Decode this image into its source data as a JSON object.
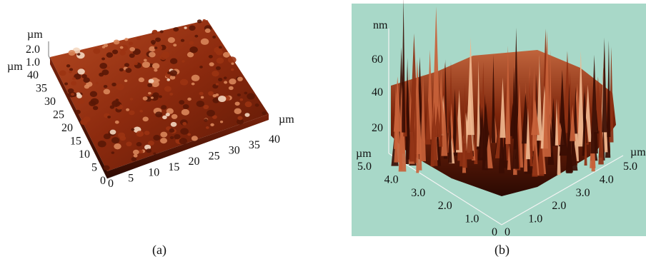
{
  "panels": [
    {
      "caption": "(a)",
      "z_unit": "µm",
      "z_ticks": [
        "2.0",
        "1.0"
      ],
      "y_unit": "µm",
      "y_ticks": [
        "40",
        "35",
        "30",
        "25",
        "20",
        "15",
        "10",
        "5",
        "0"
      ],
      "x_unit": "µm",
      "x_ticks": [
        "0",
        "5",
        "10",
        "15",
        "20",
        "25",
        "30",
        "35",
        "40"
      ],
      "surface_colors": [
        "#5a1705",
        "#9b3312",
        "#d9865a",
        "#f4d7c0"
      ]
    },
    {
      "caption": "(b)",
      "background": "#a8d8c8",
      "z_unit": "nm",
      "z_ticks": [
        "60",
        "40",
        "20"
      ],
      "left_unit": "µm",
      "left_ticks": [
        "5.0",
        "4.0",
        "3.0",
        "2.0",
        "1.0",
        "0"
      ],
      "right_unit": "µm",
      "right_ticks": [
        "0",
        "1.0",
        "2.0",
        "3.0",
        "4.0",
        "5.0"
      ],
      "surface_colors": [
        "#3a0d03",
        "#8e3114",
        "#c8623a",
        "#f0b78f"
      ]
    }
  ]
}
